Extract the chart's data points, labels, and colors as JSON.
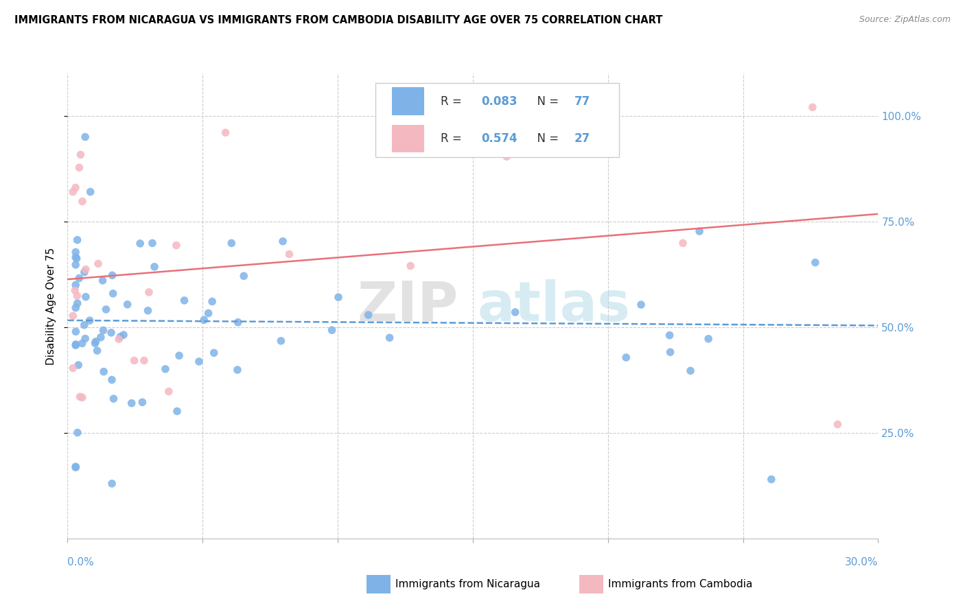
{
  "title": "IMMIGRANTS FROM NICARAGUA VS IMMIGRANTS FROM CAMBODIA DISABILITY AGE OVER 75 CORRELATION CHART",
  "source": "Source: ZipAtlas.com",
  "ylabel": "Disability Age Over 75",
  "y_ticks": [
    0.25,
    0.5,
    0.75,
    1.0
  ],
  "y_tick_labels": [
    "25.0%",
    "50.0%",
    "75.0%",
    "100.0%"
  ],
  "xmin": 0.0,
  "xmax": 0.3,
  "ymin": 0.0,
  "ymax": 1.1,
  "r_nicaragua": "0.083",
  "n_nicaragua": "77",
  "r_cambodia": "0.574",
  "n_cambodia": "27",
  "color_nicaragua": "#7fb3e8",
  "color_cambodia": "#f4b8c1",
  "color_trendline_nicaragua": "#5b9bd5",
  "color_trendline_cambodia": "#e8707a",
  "legend_label_nicaragua": "Immigrants from Nicaragua",
  "legend_label_cambodia": "Immigrants from Cambodia"
}
